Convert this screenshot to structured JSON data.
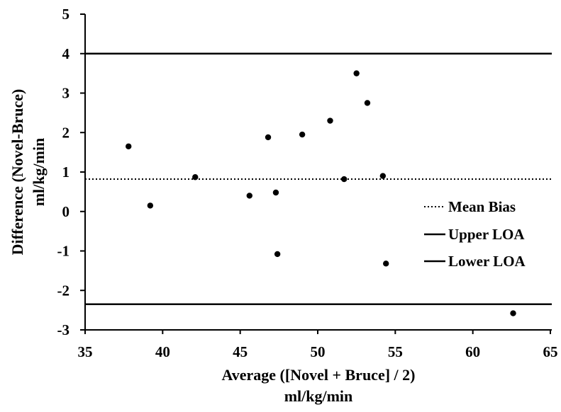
{
  "chart_data": {
    "type": "scatter",
    "title": "",
    "xlabel_lines": [
      "Average ([Novel + Bruce] / 2)",
      "ml/kg/min"
    ],
    "ylabel_lines": [
      "Difference (Novel-Bruce)",
      "ml/kg/min"
    ],
    "xlim": [
      35,
      65
    ],
    "ylim": [
      -3,
      5
    ],
    "xticks": [
      35,
      40,
      45,
      50,
      55,
      60,
      65
    ],
    "yticks": [
      -3,
      -2,
      -1,
      0,
      1,
      2,
      3,
      4,
      5
    ],
    "grid": false,
    "legend_position": "right",
    "points": [
      {
        "x": 37.8,
        "y": 1.65
      },
      {
        "x": 39.2,
        "y": 0.15
      },
      {
        "x": 42.1,
        "y": 0.87
      },
      {
        "x": 45.6,
        "y": 0.4
      },
      {
        "x": 46.8,
        "y": 1.88
      },
      {
        "x": 47.3,
        "y": 0.48
      },
      {
        "x": 47.4,
        "y": -1.08
      },
      {
        "x": 49.0,
        "y": 1.95
      },
      {
        "x": 50.8,
        "y": 2.3
      },
      {
        "x": 51.7,
        "y": 0.82
      },
      {
        "x": 52.5,
        "y": 3.5
      },
      {
        "x": 53.2,
        "y": 2.75
      },
      {
        "x": 54.2,
        "y": 0.9
      },
      {
        "x": 54.4,
        "y": -1.32
      },
      {
        "x": 62.6,
        "y": -2.58
      }
    ],
    "reference_lines": [
      {
        "name": "Mean Bias",
        "y": 0.82,
        "style": "dotted"
      },
      {
        "name": "Upper LOA",
        "y": 4.0,
        "style": "solid"
      },
      {
        "name": "Lower LOA",
        "y": -2.35,
        "style": "solid"
      }
    ],
    "colors": {
      "marks": "#000000",
      "background": "#ffffff"
    }
  }
}
